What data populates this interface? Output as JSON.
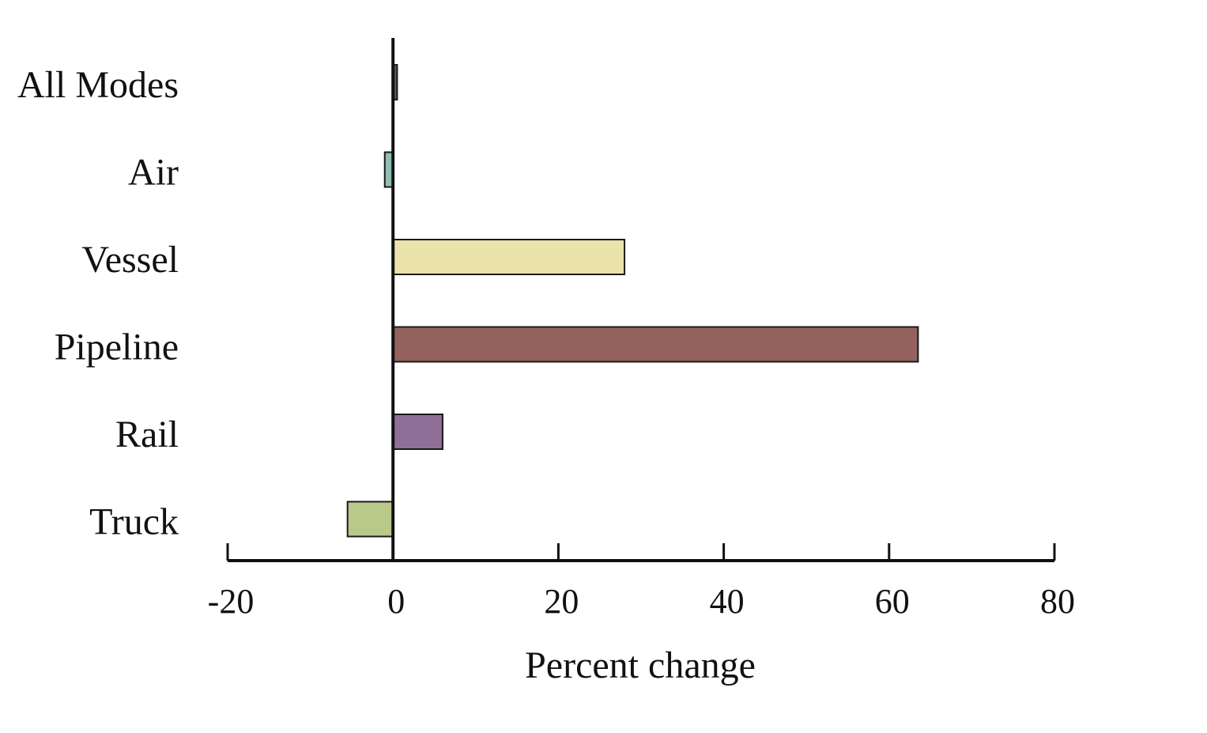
{
  "chart_data": {
    "type": "bar",
    "orientation": "horizontal",
    "categories": [
      "All Modes",
      "Air",
      "Vessel",
      "Pipeline",
      "Rail",
      "Truck"
    ],
    "values": [
      0.5,
      -1,
      28,
      63.5,
      6,
      -5.5
    ],
    "colors": [
      "#5a5a5a",
      "#8fbfb5",
      "#eae3ab",
      "#93625c",
      "#8f6f98",
      "#b9c98a"
    ],
    "xlabel": "Percent change",
    "ylabel": "",
    "xlim": [
      -20,
      80
    ],
    "xticks": [
      -20,
      0,
      20,
      40,
      60,
      80
    ],
    "grid": false,
    "legend": "none"
  }
}
